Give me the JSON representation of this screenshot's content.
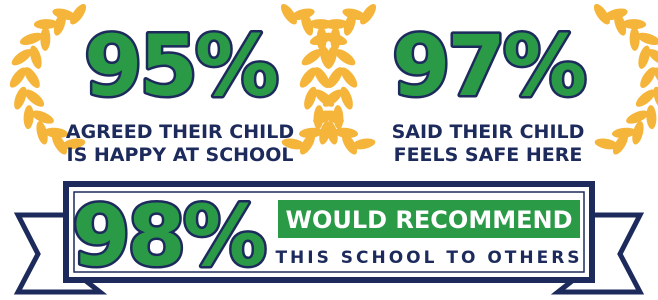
{
  "stats": [
    {
      "value": "95%",
      "lines": [
        "AGREED THEIR CHILD",
        "IS HAPPY AT SCHOOL"
      ]
    },
    {
      "value": "97%",
      "lines": [
        "SAID THEIR CHILD",
        "FEELS SAFE HERE"
      ]
    }
  ],
  "banner": {
    "value": "98%",
    "headline": "WOULD RECOMMEND",
    "subline": "THIS SCHOOL TO OTHERS"
  }
}
